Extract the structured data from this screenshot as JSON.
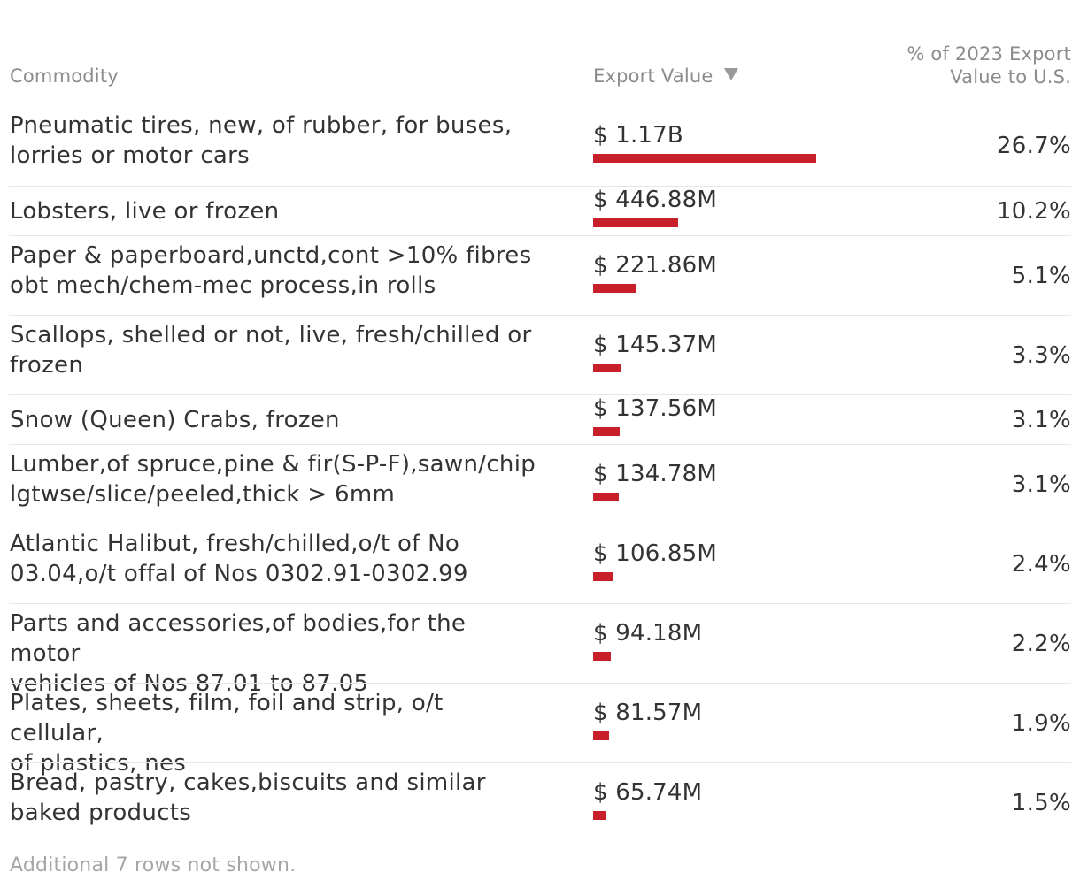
{
  "table": {
    "headers": {
      "commodity": "Commodity",
      "export_value": "Export Value",
      "pct_line1": "% of 2023 Export",
      "pct_line2": "Value to U.S."
    },
    "sort": {
      "column": "Export Value",
      "direction": "descending",
      "icon": "sort-descending-icon"
    },
    "bar_color": "#c8202a",
    "footnote": "Additional 7 rows not shown."
  },
  "chart_data": {
    "type": "bar",
    "orientation": "horizontal",
    "categories": [
      "Pneumatic tires, new, of rubber, for buses, lorries or motor cars",
      "Lobsters, live or frozen",
      "Paper & paperboard,unctd,cont >10% fibres obt mech/chem-mec process,in rolls",
      "Scallops, shelled or not, live, fresh/chilled or frozen",
      "Snow (Queen) Crabs, frozen",
      "Lumber,of spruce,pine & fir(S-P-F),sawn/chip lgtwse/slice/peeled,thick > 6mm",
      "Atlantic Halibut, fresh/chilled,o/t of No 03.04,o/t offal of Nos 0302.91-0302.99",
      "Parts and accessories,of bodies,for the motor vehicles of Nos 87.01 to 87.05",
      "Plates, sheets, film, foil and strip, o/t cellular, of plastics, nes",
      "Bread, pastry, cakes,biscuits and similar baked products"
    ],
    "lines": [
      [
        "Pneumatic tires, new, of rubber, for buses,",
        "lorries or motor cars"
      ],
      [
        "Lobsters, live or frozen"
      ],
      [
        "Paper & paperboard,unctd,cont >10% fibres",
        "obt mech/chem-mec process,in rolls"
      ],
      [
        "Scallops, shelled or not, live, fresh/chilled or",
        "frozen"
      ],
      [
        "Snow (Queen) Crabs, frozen"
      ],
      [
        "Lumber,of spruce,pine & fir(S-P-F),sawn/chip",
        "lgtwse/slice/peeled,thick > 6mm"
      ],
      [
        "Atlantic Halibut, fresh/chilled,o/t of No",
        "03.04,o/t offal of Nos 0302.91-0302.99"
      ],
      [
        "Parts and accessories,of bodies,for the motor",
        "vehicles of Nos 87.01 to 87.05"
      ],
      [
        "Plates, sheets, film, foil and strip, o/t cellular,",
        "of plastics, nes"
      ],
      [
        "Bread, pastry, cakes,biscuits and similar",
        "baked products"
      ]
    ],
    "values": [
      1170,
      446.88,
      221.86,
      145.37,
      137.56,
      134.78,
      106.85,
      94.18,
      81.57,
      65.74
    ],
    "value_labels": [
      "$ 1.17B",
      "$ 446.88M",
      "$ 221.86M",
      "$ 145.37M",
      "$ 137.56M",
      "$ 134.78M",
      "$ 106.85M",
      "$ 94.18M",
      "$ 81.57M",
      "$ 65.74M"
    ],
    "pct_labels": [
      "26.7%",
      "10.2%",
      "5.1%",
      "3.3%",
      "3.1%",
      "3.1%",
      "2.4%",
      "2.2%",
      "1.9%",
      "1.5%"
    ],
    "pct_values": [
      26.7,
      10.2,
      5.1,
      3.3,
      3.1,
      3.1,
      2.4,
      2.2,
      1.9,
      1.5
    ],
    "xlabel": "Export Value",
    "ylabel": "Commodity"
  }
}
